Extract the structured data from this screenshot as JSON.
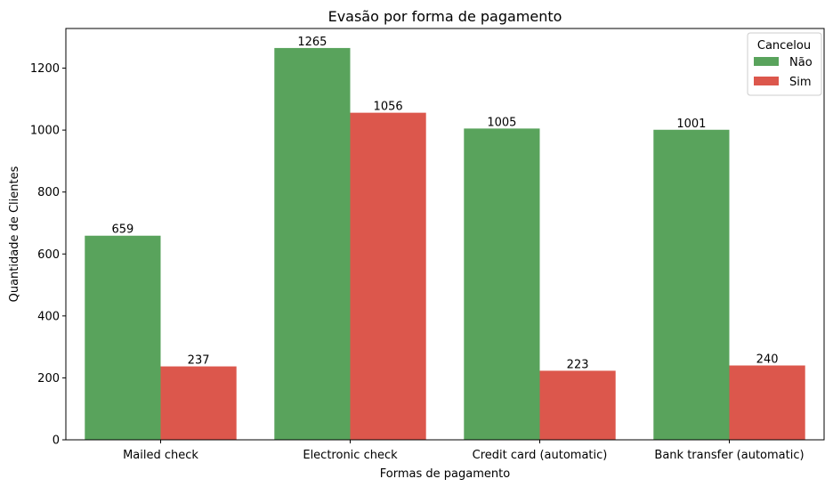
{
  "chart_data": {
    "type": "bar",
    "title": "Evasão por forma de pagamento",
    "xlabel": "Formas de pagamento",
    "ylabel": "Quantidade de Clientes",
    "categories": [
      "Mailed check",
      "Electronic check",
      "Credit card (automatic)",
      "Bank transfer (automatic)"
    ],
    "series": [
      {
        "name": "Não",
        "values": [
          659,
          1265,
          1005,
          1001
        ],
        "color": "#59a35c"
      },
      {
        "name": "Sim",
        "values": [
          237,
          1056,
          223,
          240
        ],
        "color": "#dc574c"
      }
    ],
    "ylim": [
      0,
      1328
    ],
    "yticks": [
      0,
      200,
      400,
      600,
      800,
      1000,
      1200
    ],
    "legend": {
      "title": "Cancelou",
      "placement": "top-right"
    },
    "grid": false
  }
}
